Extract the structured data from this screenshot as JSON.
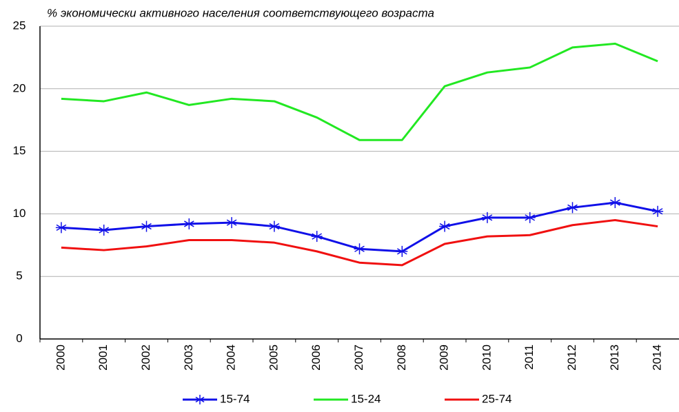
{
  "chart_data": {
    "type": "line",
    "title": "% экономически активного населения соответствующего возраста",
    "categories": [
      "2000",
      "2001",
      "2002",
      "2003",
      "2004",
      "2005",
      "2006",
      "2007",
      "2008",
      "2009",
      "2010",
      "2011",
      "2012",
      "2013",
      "2014"
    ],
    "series": [
      {
        "name": "15-74",
        "color": "#1010e8",
        "marker": "asterisk",
        "values": [
          8.9,
          8.7,
          9.0,
          9.2,
          9.3,
          9.0,
          8.2,
          7.2,
          7.0,
          9.0,
          9.7,
          9.7,
          10.5,
          10.9,
          10.2
        ]
      },
      {
        "name": "15-24",
        "color": "#22e822",
        "values": [
          19.2,
          19.0,
          19.7,
          18.7,
          19.2,
          19.0,
          17.7,
          15.9,
          15.9,
          20.2,
          21.3,
          21.7,
          23.3,
          23.6,
          22.2
        ]
      },
      {
        "name": "25-74",
        "color": "#f01010",
        "values": [
          7.3,
          7.1,
          7.4,
          7.9,
          7.9,
          7.7,
          7.0,
          6.1,
          5.9,
          7.6,
          8.2,
          8.3,
          9.1,
          9.5,
          9.0
        ]
      }
    ],
    "ylim": [
      0,
      25
    ],
    "yticks": [
      0,
      5,
      10,
      15,
      20,
      25
    ],
    "grid": true,
    "legend": "bottom"
  }
}
